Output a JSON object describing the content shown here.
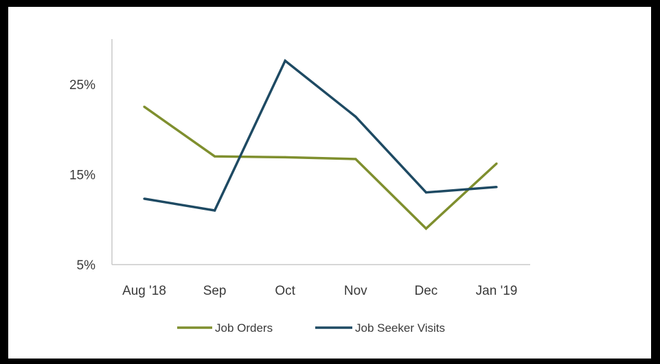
{
  "chart_data": {
    "type": "line",
    "title": "",
    "xlabel": "",
    "ylabel": "",
    "categories": [
      "Aug '18",
      "Sep",
      "Oct",
      "Nov",
      "Dec",
      "Jan '19"
    ],
    "ylim": [
      5,
      30
    ],
    "yticks": [
      5,
      15,
      25
    ],
    "ytick_labels": [
      "5%",
      "15%",
      "25%"
    ],
    "grid": false,
    "legend_position": "bottom",
    "series": [
      {
        "name": "Job Orders",
        "color": "#7f8f2e",
        "values": [
          22.5,
          17.0,
          16.9,
          16.7,
          9.0,
          16.2
        ]
      },
      {
        "name": "Job Seeker Visits",
        "color": "#1e4a63",
        "values": [
          12.3,
          11.0,
          27.6,
          21.4,
          13.0,
          13.6
        ]
      }
    ]
  }
}
